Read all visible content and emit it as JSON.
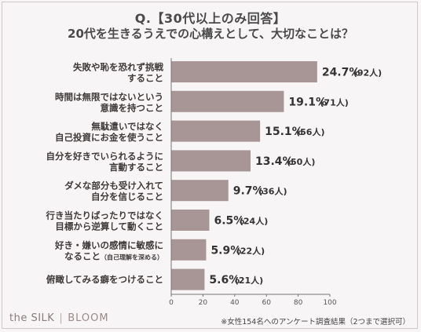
{
  "header": {
    "title_line1": "Q.【30代以上のみ回答】",
    "title_line2": "20代を生きるうえでの心構えとして、大切なことは？"
  },
  "footer": {
    "logo_left": "the SILK",
    "logo_right": "BLOOM",
    "note": "※女性154名へのアンケート調査結果（2つまで選択可）"
  },
  "colors": {
    "bar": "#a89696",
    "background": "#f7f5f5",
    "axis": "#777777"
  },
  "chart_data": {
    "type": "bar",
    "orientation": "horizontal",
    "categories": [
      [
        "失敗や恥を恐れず挑戦",
        "すること"
      ],
      [
        "時間は無限ではないという",
        "意識を持つこと"
      ],
      [
        "無駄遣いではなく",
        "自己投資にお金を使うこと"
      ],
      [
        "自分を好きでいられるように",
        "言動すること"
      ],
      [
        "ダメな部分も受け入れて",
        "自分を信じること"
      ],
      [
        "行き当たりばったりではなく",
        "目標から逆算して動くこと"
      ],
      [
        "好き・嫌いの感情に敏感に",
        "なること"
      ],
      [
        "俯瞰してみる癖をつけること"
      ]
    ],
    "category_notes": [
      "",
      "",
      "",
      "",
      "",
      "",
      "（自己理解を深める）",
      ""
    ],
    "values": [
      92,
      71,
      56,
      50,
      36,
      24,
      22,
      21
    ],
    "percent_labels": [
      "24.7%",
      "19.1%",
      "15.1%",
      "13.4%",
      "9.7%",
      "6.5%",
      "5.9%",
      "5.6%"
    ],
    "count_labels": [
      "(92人)",
      "(71人)",
      "(56人)",
      "(50人)",
      "(36人)",
      "(24人)",
      "(22人)",
      "(21人)"
    ],
    "xticks": [
      "0",
      "20",
      "40",
      "60",
      "80",
      "100"
    ],
    "xlim": [
      0,
      100
    ],
    "grid": false
  }
}
